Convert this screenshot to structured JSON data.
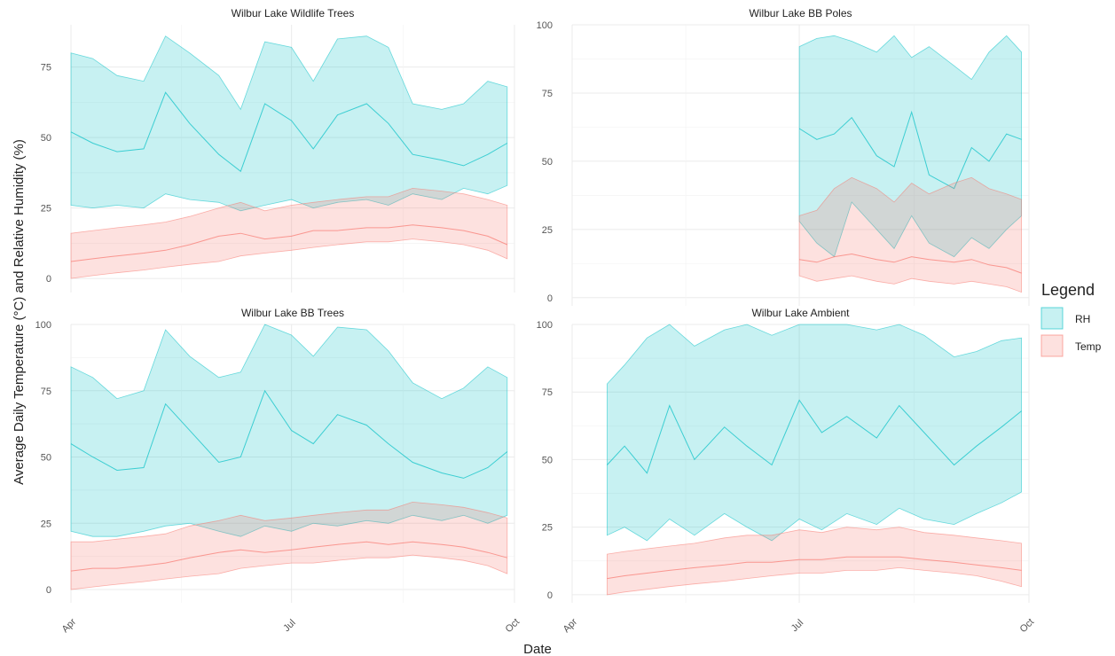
{
  "colors": {
    "rh": "#00BFC4",
    "temp": "#F8766D"
  },
  "chart_data": {
    "type": "area",
    "xlabel": "Date",
    "ylabel": "Average Daily Temperature (°C) and Relative Humidity (%)",
    "legend": {
      "title": "Legend",
      "position": "right",
      "entries": [
        "RH",
        "Temp"
      ]
    },
    "x_ticks": [
      "Apr",
      "Jul",
      "Oct"
    ],
    "grid": true,
    "panels": [
      {
        "title": "Wilbur Lake Wildlife Trees",
        "ylim": [
          -5,
          90
        ],
        "y_ticks": [
          0,
          25,
          50,
          75
        ],
        "x": [
          "04-01",
          "04-10",
          "04-20",
          "05-01",
          "05-10",
          "05-20",
          "06-01",
          "06-10",
          "06-20",
          "07-01",
          "07-10",
          "07-20",
          "08-01",
          "08-10",
          "08-20",
          "09-01",
          "09-10",
          "09-20",
          "09-28"
        ],
        "series": [
          {
            "name": "RH",
            "lower": [
              26,
              25,
              26,
              25,
              30,
              28,
              27,
              24,
              26,
              28,
              25,
              27,
              28,
              26,
              30,
              28,
              32,
              30,
              33
            ],
            "mean": [
              52,
              48,
              45,
              46,
              66,
              55,
              44,
              38,
              62,
              56,
              46,
              58,
              62,
              55,
              44,
              42,
              40,
              44,
              48
            ],
            "upper": [
              80,
              78,
              72,
              70,
              86,
              80,
              72,
              60,
              84,
              82,
              70,
              85,
              86,
              82,
              62,
              60,
              62,
              70,
              68
            ]
          },
          {
            "name": "Temp",
            "lower": [
              0,
              1,
              2,
              3,
              4,
              5,
              6,
              8,
              9,
              10,
              11,
              12,
              13,
              13,
              14,
              13,
              12,
              10,
              7
            ],
            "mean": [
              6,
              7,
              8,
              9,
              10,
              12,
              15,
              16,
              14,
              15,
              17,
              17,
              18,
              18,
              19,
              18,
              17,
              15,
              12
            ],
            "upper": [
              16,
              17,
              18,
              19,
              20,
              22,
              25,
              27,
              24,
              26,
              27,
              28,
              29,
              29,
              32,
              31,
              30,
              28,
              26
            ]
          }
        ]
      },
      {
        "title": "Wilbur Lake BB Poles",
        "ylim": [
          -3,
          100
        ],
        "y_ticks": [
          0,
          25,
          50,
          75,
          100
        ],
        "x": [
          "07-01",
          "07-08",
          "07-15",
          "07-22",
          "08-01",
          "08-08",
          "08-15",
          "08-22",
          "09-01",
          "09-08",
          "09-15",
          "09-22",
          "09-28"
        ],
        "series": [
          {
            "name": "RH",
            "lower": [
              28,
              20,
              15,
              35,
              25,
              18,
              30,
              20,
              15,
              22,
              18,
              25,
              30
            ],
            "mean": [
              62,
              58,
              60,
              66,
              52,
              48,
              68,
              45,
              40,
              55,
              50,
              60,
              58
            ],
            "upper": [
              92,
              95,
              96,
              94,
              90,
              96,
              88,
              92,
              85,
              80,
              90,
              96,
              90
            ]
          },
          {
            "name": "Temp",
            "lower": [
              8,
              6,
              7,
              8,
              6,
              5,
              7,
              6,
              5,
              6,
              5,
              4,
              2
            ],
            "mean": [
              14,
              13,
              15,
              16,
              14,
              13,
              15,
              14,
              13,
              14,
              12,
              11,
              9
            ],
            "upper": [
              30,
              32,
              40,
              44,
              40,
              35,
              42,
              38,
              42,
              44,
              40,
              38,
              36
            ]
          }
        ]
      },
      {
        "title": "Wilbur Lake BB Trees",
        "ylim": [
          -5,
          100
        ],
        "y_ticks": [
          0,
          25,
          50,
          75,
          100
        ],
        "x": [
          "04-01",
          "04-10",
          "04-20",
          "05-01",
          "05-10",
          "05-20",
          "06-01",
          "06-10",
          "06-20",
          "07-01",
          "07-10",
          "07-20",
          "08-01",
          "08-10",
          "08-20",
          "09-01",
          "09-10",
          "09-20",
          "09-28"
        ],
        "series": [
          {
            "name": "RH",
            "lower": [
              22,
              20,
              20,
              22,
              24,
              25,
              22,
              20,
              24,
              22,
              25,
              24,
              26,
              25,
              28,
              26,
              28,
              25,
              28
            ],
            "mean": [
              55,
              50,
              45,
              46,
              70,
              60,
              48,
              50,
              75,
              60,
              55,
              66,
              62,
              55,
              48,
              44,
              42,
              46,
              52
            ],
            "upper": [
              84,
              80,
              72,
              75,
              98,
              88,
              80,
              82,
              100,
              96,
              88,
              99,
              98,
              90,
              78,
              72,
              76,
              84,
              80
            ]
          },
          {
            "name": "Temp",
            "lower": [
              0,
              1,
              2,
              3,
              4,
              5,
              6,
              8,
              9,
              10,
              10,
              11,
              12,
              12,
              13,
              12,
              11,
              9,
              6
            ],
            "mean": [
              7,
              8,
              8,
              9,
              10,
              12,
              14,
              15,
              14,
              15,
              16,
              17,
              18,
              17,
              18,
              17,
              16,
              14,
              12
            ],
            "upper": [
              18,
              18,
              19,
              20,
              21,
              24,
              26,
              28,
              26,
              27,
              28,
              29,
              30,
              30,
              33,
              32,
              31,
              29,
              27
            ]
          }
        ]
      },
      {
        "title": "Wilbur Lake Ambient",
        "ylim": [
          -3,
          100
        ],
        "y_ticks": [
          0,
          25,
          50,
          75,
          100
        ],
        "x": [
          "04-15",
          "04-22",
          "05-01",
          "05-10",
          "05-20",
          "06-01",
          "06-10",
          "06-20",
          "07-01",
          "07-10",
          "07-20",
          "08-01",
          "08-10",
          "08-20",
          "09-01",
          "09-10",
          "09-20",
          "09-28"
        ],
        "series": [
          {
            "name": "RH",
            "lower": [
              22,
              25,
              20,
              28,
              22,
              30,
              25,
              20,
              28,
              24,
              30,
              26,
              32,
              28,
              26,
              30,
              34,
              38
            ],
            "mean": [
              48,
              55,
              45,
              70,
              50,
              62,
              55,
              48,
              72,
              60,
              66,
              58,
              70,
              60,
              48,
              55,
              62,
              68
            ],
            "upper": [
              78,
              85,
              95,
              100,
              92,
              98,
              100,
              96,
              100,
              100,
              100,
              98,
              100,
              96,
              88,
              90,
              94,
              95
            ]
          },
          {
            "name": "Temp",
            "lower": [
              0,
              1,
              2,
              3,
              4,
              5,
              6,
              7,
              8,
              8,
              9,
              9,
              10,
              9,
              8,
              7,
              5,
              3
            ],
            "mean": [
              6,
              7,
              8,
              9,
              10,
              11,
              12,
              12,
              13,
              13,
              14,
              14,
              14,
              13,
              12,
              11,
              10,
              9
            ],
            "upper": [
              15,
              16,
              17,
              18,
              19,
              21,
              22,
              22,
              24,
              23,
              25,
              24,
              25,
              23,
              22,
              21,
              20,
              19
            ]
          }
        ]
      }
    ]
  }
}
